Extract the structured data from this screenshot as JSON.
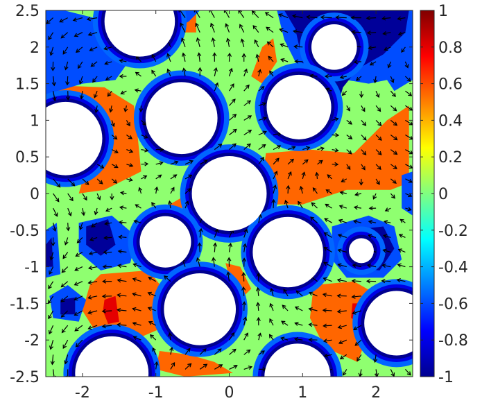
{
  "chart_data": {
    "type": "heatmap",
    "title": "",
    "xlabel": "",
    "ylabel": "",
    "xlim": [
      -2.5,
      2.5
    ],
    "ylim": [
      -2.5,
      2.5
    ],
    "x_ticks": [
      "-2",
      "-1",
      "0",
      "1",
      "2"
    ],
    "y_ticks": [
      "2.5",
      "2",
      "1.5",
      "1",
      "0.5",
      "0",
      "-0.5",
      "-1",
      "-1.5",
      "-2",
      "-2.5"
    ],
    "colorbar": {
      "range": [
        -1,
        1
      ],
      "ticks": [
        "1",
        "0.8",
        "0.6",
        "0.4",
        "0.2",
        "0",
        "-0.2",
        "-0.4",
        "-0.6",
        "-0.8",
        "-1"
      ],
      "colormap": "jet"
    },
    "obstacles": [
      {
        "cx": -1.22,
        "cy": 2.35,
        "r": 0.48
      },
      {
        "cx": 1.43,
        "cy": 2.0,
        "r": 0.31
      },
      {
        "cx": -0.65,
        "cy": 1.03,
        "r": 0.49
      },
      {
        "cx": 0.95,
        "cy": 1.18,
        "r": 0.44
      },
      {
        "cx": -2.23,
        "cy": 0.75,
        "r": 0.5
      },
      {
        "cx": 0.0,
        "cy": 0.0,
        "r": 0.51
      },
      {
        "cx": -0.87,
        "cy": -0.66,
        "r": 0.35
      },
      {
        "cx": 0.8,
        "cy": -0.8,
        "r": 0.48
      },
      {
        "cx": 1.8,
        "cy": -0.78,
        "r": 0.17
      },
      {
        "cx": -0.4,
        "cy": -1.58,
        "r": 0.49
      },
      {
        "cx": 2.28,
        "cy": -1.77,
        "r": 0.44
      },
      {
        "cx": -1.6,
        "cy": -2.45,
        "r": 0.5
      },
      {
        "cx": 0.93,
        "cy": -2.5,
        "r": 0.45
      }
    ],
    "field_regions": [
      {
        "level": 0.55,
        "points": [
          [
            -2.45,
            1.48
          ],
          [
            -1.7,
            1.45
          ],
          [
            -1.3,
            1.2
          ],
          [
            -1.25,
            0.8
          ],
          [
            -1.2,
            0.3
          ],
          [
            -1.7,
            0.05
          ],
          [
            -2.05,
            0.0
          ],
          [
            -1.95,
            0.35
          ],
          [
            -1.65,
            0.7
          ],
          [
            -1.75,
            1.15
          ],
          [
            -2.45,
            1.3
          ]
        ]
      },
      {
        "level": 0.55,
        "points": [
          [
            0.5,
            0.55
          ],
          [
            1.1,
            0.6
          ],
          [
            1.7,
            0.55
          ],
          [
            2.15,
            1.0
          ],
          [
            2.45,
            1.2
          ],
          [
            2.45,
            0.15
          ],
          [
            2.2,
            0.05
          ],
          [
            1.6,
            0.05
          ],
          [
            1.0,
            -0.15
          ],
          [
            0.55,
            -0.15
          ],
          [
            0.45,
            0.2
          ]
        ]
      },
      {
        "level": 0.55,
        "points": [
          [
            -0.6,
            0.5
          ],
          [
            -0.45,
            0.3
          ],
          [
            -0.55,
            0.0
          ],
          [
            -0.9,
            -0.2
          ],
          [
            -0.6,
            -0.2
          ],
          [
            -0.45,
            0.1
          ]
        ]
      },
      {
        "level": 0.55,
        "points": [
          [
            0.45,
            2.0
          ],
          [
            0.6,
            2.12
          ],
          [
            0.65,
            1.8
          ],
          [
            0.45,
            1.5
          ],
          [
            0.3,
            1.6
          ]
        ]
      },
      {
        "level": 0.55,
        "points": [
          [
            -0.65,
            2.4
          ],
          [
            -0.45,
            2.45
          ],
          [
            -0.45,
            2.2
          ],
          [
            -0.6,
            2.2
          ]
        ]
      },
      {
        "level": 0.55,
        "points": [
          [
            -1.75,
            -1.1
          ],
          [
            -1.1,
            -1.05
          ],
          [
            -0.9,
            -1.3
          ],
          [
            -0.95,
            -1.85
          ],
          [
            -1.3,
            -2.0
          ],
          [
            -1.75,
            -2.0
          ],
          [
            -2.0,
            -1.6
          ],
          [
            -1.9,
            -1.25
          ]
        ]
      },
      {
        "level": 0.55,
        "points": [
          [
            1.15,
            -1.25
          ],
          [
            1.7,
            -1.2
          ],
          [
            2.05,
            -1.4
          ],
          [
            1.9,
            -1.9
          ],
          [
            1.75,
            -2.3
          ],
          [
            1.3,
            -2.1
          ],
          [
            1.1,
            -1.7
          ]
        ]
      },
      {
        "level": 0.55,
        "points": [
          [
            -0.95,
            -2.15
          ],
          [
            -0.55,
            -2.2
          ],
          [
            -0.2,
            -2.3
          ],
          [
            0.05,
            -2.45
          ],
          [
            -0.6,
            -2.5
          ],
          [
            -1.0,
            -2.4
          ]
        ]
      },
      {
        "level": 0.55,
        "points": [
          [
            -0.05,
            -0.95
          ],
          [
            0.15,
            -1.0
          ],
          [
            0.3,
            -1.3
          ],
          [
            0.2,
            -1.4
          ],
          [
            0.0,
            -1.15
          ]
        ]
      },
      {
        "level": 0.8,
        "points": [
          [
            -1.7,
            -1.45
          ],
          [
            -1.55,
            -1.4
          ],
          [
            -1.5,
            -1.75
          ],
          [
            -1.65,
            -1.78
          ],
          [
            -1.72,
            -1.6
          ]
        ]
      },
      {
        "level": 0.8,
        "points": [
          [
            1.68,
            -1.5
          ],
          [
            1.78,
            -1.5
          ],
          [
            1.76,
            -1.75
          ],
          [
            1.66,
            -1.7
          ]
        ]
      },
      {
        "level": -0.6,
        "points": [
          [
            -0.8,
            2.5
          ],
          [
            -0.4,
            2.5
          ],
          [
            -0.55,
            2.35
          ],
          [
            -0.8,
            2.2
          ]
        ]
      },
      {
        "level": -0.6,
        "points": [
          [
            0.65,
            2.5
          ],
          [
            2.5,
            2.5
          ],
          [
            2.5,
            1.55
          ],
          [
            2.25,
            1.4
          ],
          [
            2.15,
            1.55
          ],
          [
            1.9,
            1.5
          ],
          [
            1.6,
            1.55
          ],
          [
            1.35,
            1.5
          ],
          [
            0.95,
            1.7
          ],
          [
            0.75,
            2.1
          ]
        ]
      },
      {
        "level": -0.6,
        "points": [
          [
            -2.5,
            1.35
          ],
          [
            -2.0,
            1.5
          ],
          [
            -1.55,
            1.55
          ],
          [
            -1.3,
            1.9
          ],
          [
            -1.55,
            2.1
          ],
          [
            -1.85,
            2.4
          ],
          [
            -2.25,
            2.5
          ],
          [
            -2.5,
            2.5
          ]
        ]
      },
      {
        "level": -0.6,
        "points": [
          [
            -2.05,
            -0.4
          ],
          [
            -1.6,
            -0.3
          ],
          [
            -1.25,
            -0.6
          ],
          [
            -1.35,
            -0.95
          ],
          [
            -1.75,
            -1.05
          ],
          [
            -2.05,
            -0.8
          ]
        ]
      },
      {
        "level": -0.6,
        "points": [
          [
            1.4,
            -0.45
          ],
          [
            1.9,
            -0.3
          ],
          [
            2.25,
            -0.45
          ],
          [
            2.35,
            -0.9
          ],
          [
            2.1,
            -1.15
          ],
          [
            1.6,
            -1.15
          ],
          [
            1.4,
            -0.9
          ]
        ]
      },
      {
        "level": -0.6,
        "points": [
          [
            -2.45,
            -1.4
          ],
          [
            -2.2,
            -1.25
          ],
          [
            -1.95,
            -1.45
          ],
          [
            -2.05,
            -1.75
          ],
          [
            -2.4,
            -1.7
          ]
        ]
      },
      {
        "level": -0.6,
        "points": [
          [
            -2.5,
            -0.5
          ],
          [
            -2.35,
            -0.4
          ],
          [
            -2.3,
            -1.1
          ],
          [
            -2.5,
            -1.15
          ]
        ]
      },
      {
        "level": -0.6,
        "points": [
          [
            2.35,
            0.25
          ],
          [
            2.5,
            0.3
          ],
          [
            2.5,
            -0.3
          ],
          [
            2.35,
            -0.2
          ]
        ]
      },
      {
        "level": -0.95,
        "points": [
          [
            0.75,
            2.5
          ],
          [
            2.45,
            2.5
          ],
          [
            2.4,
            2.2
          ],
          [
            2.1,
            1.9
          ],
          [
            1.75,
            1.7
          ],
          [
            1.55,
            1.45
          ],
          [
            1.45,
            1.1
          ],
          [
            1.3,
            0.75
          ],
          [
            1.0,
            0.7
          ],
          [
            0.8,
            0.95
          ],
          [
            0.85,
            1.45
          ],
          [
            1.0,
            1.8
          ],
          [
            0.9,
            2.25
          ]
        ]
      },
      {
        "level": -0.95,
        "points": [
          [
            -1.95,
            -0.45
          ],
          [
            -1.65,
            -0.35
          ],
          [
            -1.55,
            -0.7
          ],
          [
            -1.75,
            -0.85
          ],
          [
            -1.95,
            -0.7
          ]
        ]
      },
      {
        "level": -0.95,
        "points": [
          [
            1.65,
            -0.5
          ],
          [
            2.1,
            -0.45
          ],
          [
            2.25,
            -0.75
          ],
          [
            2.05,
            -1.05
          ],
          [
            1.6,
            -1.0
          ]
        ]
      },
      {
        "level": -0.95,
        "points": [
          [
            -2.3,
            -1.45
          ],
          [
            -2.1,
            -1.42
          ],
          [
            -2.1,
            -1.65
          ],
          [
            -2.3,
            -1.65
          ]
        ]
      },
      {
        "level": -0.95,
        "points": [
          [
            -2.5,
            -0.7
          ],
          [
            -2.42,
            -0.6
          ],
          [
            -2.4,
            -1.0
          ],
          [
            -2.5,
            -1.0
          ]
        ]
      }
    ],
    "vector_field": {
      "grid_spacing": 0.2,
      "style": "black arrows"
    }
  }
}
